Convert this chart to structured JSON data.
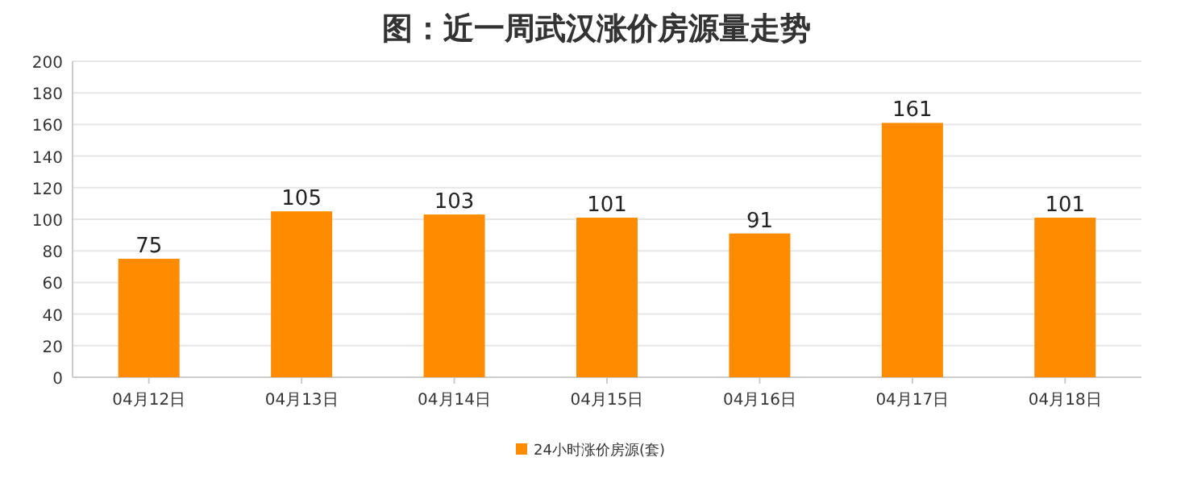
{
  "chart_data": {
    "type": "bar",
    "title": "图：近一周武汉涨价房源量走势",
    "categories": [
      "04月12日",
      "04月13日",
      "04月14日",
      "04月15日",
      "04月16日",
      "04月17日",
      "04月18日"
    ],
    "series": [
      {
        "name": "24小时涨价房源(套)",
        "color": "#ff8c00",
        "values": [
          75,
          105,
          103,
          101,
          91,
          161,
          101
        ]
      }
    ],
    "ylim": [
      0,
      200
    ],
    "yticks": [
      0,
      20,
      40,
      60,
      80,
      100,
      120,
      140,
      160,
      180,
      200
    ],
    "grid": "y",
    "legend": "bottom",
    "data_labels": true
  }
}
